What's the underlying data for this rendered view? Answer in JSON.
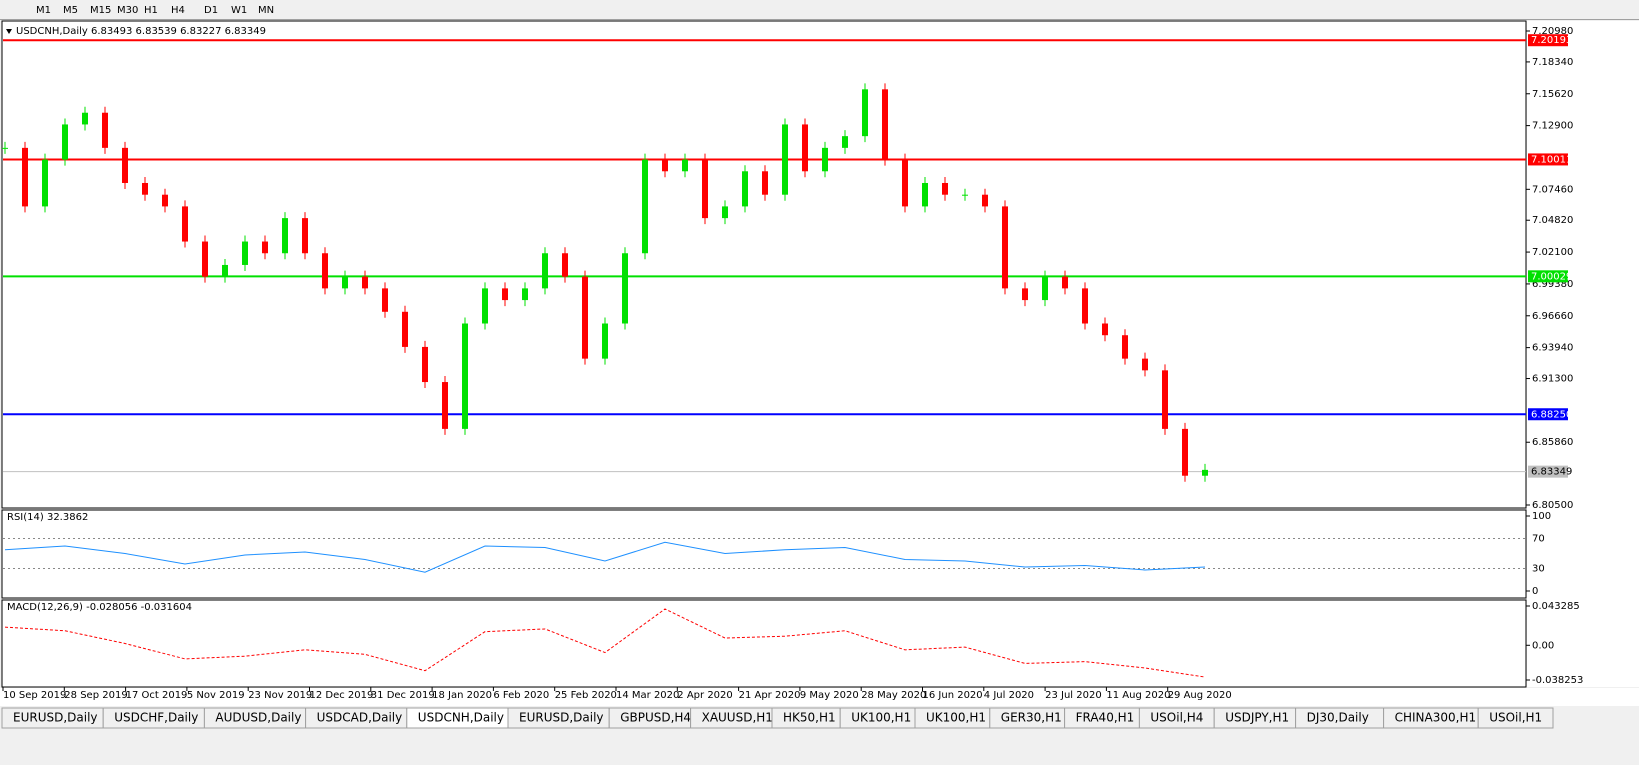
{
  "toolbar": {
    "timeframes": [
      "M1",
      "M5",
      "M15",
      "M30",
      "H1",
      "H4",
      "D1",
      "W1",
      "MN"
    ]
  },
  "chart": {
    "header": "USDCNH,Daily  6.83493 6.83539 6.83227 6.83349",
    "ylim": [
      6.805,
      7.2098
    ],
    "yticks": [
      {
        "value": 7.2098,
        "label": "7.20980"
      },
      {
        "value": 7.1834,
        "label": "7.18340"
      },
      {
        "value": 7.1562,
        "label": "7.15620"
      },
      {
        "value": 7.129,
        "label": "7.12900"
      },
      {
        "value": 7.0746,
        "label": "7.07460"
      },
      {
        "value": 7.0482,
        "label": "7.04820"
      },
      {
        "value": 7.021,
        "label": "7.02100"
      },
      {
        "value": 6.9938,
        "label": "6.99380"
      },
      {
        "value": 6.9666,
        "label": "6.96660"
      },
      {
        "value": 6.9394,
        "label": "6.93940"
      },
      {
        "value": 6.913,
        "label": "6.91300"
      },
      {
        "value": 6.8586,
        "label": "6.85860"
      },
      {
        "value": 6.805,
        "label": "6.80500"
      }
    ],
    "levels": [
      {
        "value": 7.20193,
        "label": "7.20193",
        "color": "#ff0000"
      },
      {
        "value": 7.10011,
        "label": "7.10011",
        "color": "#ff0000"
      },
      {
        "value": 7.00029,
        "label": "7.00029",
        "color": "#00e000"
      },
      {
        "value": 6.8825,
        "label": "6.88250",
        "color": "#0000ff"
      },
      {
        "value": 6.83349,
        "label": "6.83349",
        "color": "#c0c0c0"
      }
    ],
    "closes": [
      7.11,
      7.06,
      7.1,
      7.13,
      7.14,
      7.11,
      7.08,
      7.07,
      7.06,
      7.03,
      7.0,
      7.01,
      7.03,
      7.02,
      7.05,
      7.02,
      6.99,
      7.0,
      6.99,
      6.97,
      6.94,
      6.91,
      6.87,
      6.96,
      6.99,
      6.98,
      6.99,
      7.02,
      7.0,
      6.93,
      6.96,
      7.02,
      7.1,
      7.09,
      7.1,
      7.05,
      7.06,
      7.09,
      7.07,
      7.13,
      7.09,
      7.11,
      7.12,
      7.16,
      7.1,
      7.06,
      7.08,
      7.07,
      7.07,
      7.06,
      6.99,
      6.98,
      7.0,
      6.99,
      6.96,
      6.95,
      6.93,
      6.92,
      6.87,
      6.83,
      6.835
    ],
    "dates": [
      "10 Sep 2019",
      "28 Sep 2019",
      "17 Oct 2019",
      "5 Nov 2019",
      "23 Nov 2019",
      "12 Dec 2019",
      "31 Dec 2019",
      "18 Jan 2020",
      "6 Feb 2020",
      "25 Feb 2020",
      "14 Mar 2020",
      "2 Apr 2020",
      "21 Apr 2020",
      "9 May 2020",
      "28 May 2020",
      "16 Jun 2020",
      "4 Jul 2020",
      "23 Jul 2020",
      "11 Aug 2020",
      "29 Aug 2020"
    ]
  },
  "rsi": {
    "label": "RSI(14) 32.3862",
    "ylim": [
      0,
      100
    ],
    "yticks": [
      100,
      70,
      30,
      0
    ],
    "values": [
      55,
      60,
      50,
      36,
      48,
      52,
      42,
      25,
      60,
      58,
      40,
      65,
      50,
      55,
      58,
      42,
      40,
      32,
      34,
      28,
      32
    ]
  },
  "macd": {
    "label": "MACD(12,26,9) -0.028056 -0.031604",
    "ylim": [
      -0.038253,
      0.043285
    ],
    "yticks": [
      0.043285,
      {
        "value": 0,
        "label": "0.00"
      },
      -0.038253
    ],
    "signal": [
      0.02,
      0.016,
      0.002,
      -0.015,
      -0.012,
      -0.005,
      -0.01,
      -0.028,
      0.015,
      0.018,
      -0.008,
      0.04,
      0.008,
      0.01,
      0.016,
      -0.005,
      -0.002,
      -0.02,
      -0.018,
      -0.025,
      -0.035
    ]
  },
  "tabs": [
    "EURUSD,Daily",
    "USDCHF,Daily",
    "AUDUSD,Daily",
    "USDCAD,Daily",
    "USDCNH,Daily",
    "EURUSD,Daily",
    "GBPUSD,H4",
    "XAUUSD,H1",
    "HK50,H1",
    "UK100,H1",
    "UK100,H1",
    "GER30,H1",
    "FRA40,H1",
    "USOil,H4",
    "USDJPY,H1",
    "DJ30,Daily",
    "CHINA300,H1",
    "USOil,H1"
  ]
}
